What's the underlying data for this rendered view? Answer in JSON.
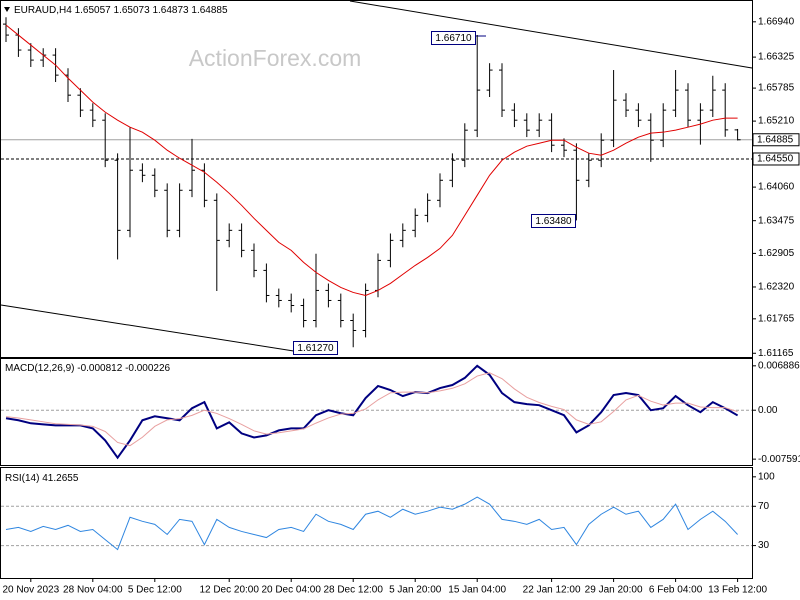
{
  "chart_data": [
    {
      "type": "candlestick",
      "title": "EURAUD,H4",
      "watermark": "ActionForex.com",
      "color": "#000000",
      "ylim": [
        1.611,
        1.6732
      ],
      "yticks": [
        {
          "value": 1.6694,
          "label": "1.66940"
        },
        1.66325,
        1.65785,
        {
          "value": 1.6521,
          "label": "1.65210"
        },
        {
          "value": 1.6406,
          "label": "1.64060"
        },
        1.63475,
        1.62905,
        {
          "value": 1.6232,
          "label": "1.62320"
        },
        1.61765,
        1.61165
      ],
      "levels": [
        {
          "value": 1.64885,
          "label": "1.64885",
          "style": "solid"
        },
        {
          "value": 1.6455,
          "label": "1.64550",
          "style": "dashed"
        }
      ],
      "annotations": [
        "1.66710",
        "1.61270",
        "1.63480"
      ],
      "categories": [
        null,
        null,
        "20 Nov 2023",
        null,
        null,
        null,
        null,
        "28 Nov 04:00",
        null,
        null,
        null,
        null,
        "5 Dec 12:00",
        null,
        null,
        null,
        null,
        null,
        "12 Dec 20:00",
        null,
        null,
        null,
        null,
        "20 Dec 04:00",
        null,
        null,
        null,
        null,
        "28 Dec 12:00",
        null,
        null,
        null,
        null,
        "5 Jan 20:00",
        null,
        null,
        null,
        null,
        "15 Jan 04:00",
        null,
        null,
        null,
        null,
        null,
        "22 Jan 12:00",
        null,
        null,
        null,
        null,
        "29 Jan 20:00",
        null,
        null,
        null,
        null,
        "6 Feb 04:00",
        null,
        null,
        null,
        null,
        "13 Feb 12:00"
      ],
      "ohlc": [
        [
          1.669,
          1.6702,
          1.66589,
          1.66709
        ],
        [
          1.66709,
          1.66829,
          1.66328,
          1.66448
        ],
        [
          1.66448,
          1.66568,
          1.66153,
          1.66273
        ],
        [
          1.66273,
          1.6648,
          1.66153,
          1.6636
        ],
        [
          1.6636,
          1.6648,
          1.65891,
          1.66011
        ],
        [
          1.66011,
          1.66131,
          1.65542,
          1.65662
        ],
        [
          1.65662,
          1.65782,
          1.65281,
          1.65401
        ],
        [
          1.65401,
          1.65521,
          1.65106,
          1.65226
        ],
        [
          1.65226,
          1.65346,
          1.64408,
          1.64528
        ],
        [
          1.64528,
          1.64648,
          1.628,
          1.63307
        ],
        [
          1.63307,
          1.651,
          1.63187,
          1.64354
        ],
        [
          1.64354,
          1.64474,
          1.64146,
          1.64266
        ],
        [
          1.64266,
          1.64386,
          1.63885,
          1.64005
        ],
        [
          1.64005,
          1.64125,
          1.63187,
          1.63307
        ],
        [
          1.63307,
          1.64125,
          1.63187,
          1.64005
        ],
        [
          1.64005,
          1.649,
          1.63885,
          1.64354
        ],
        [
          1.64354,
          1.64474,
          1.6371,
          1.6383
        ],
        [
          1.6383,
          1.6395,
          1.6225,
          1.63132
        ],
        [
          1.63132,
          1.63427,
          1.63012,
          1.63307
        ],
        [
          1.63307,
          1.63427,
          1.62838,
          1.62958
        ],
        [
          1.62958,
          1.63078,
          1.62489,
          1.62609
        ],
        [
          1.62609,
          1.62729,
          1.62052,
          1.62172
        ],
        [
          1.62172,
          1.62292,
          1.61965,
          1.62085
        ],
        [
          1.62085,
          1.62205,
          1.61877,
          1.61997
        ],
        [
          1.61997,
          1.62117,
          1.61616,
          1.61736
        ],
        [
          1.61736,
          1.629,
          1.61616,
          1.6226
        ],
        [
          1.6226,
          1.6238,
          1.61965,
          1.62085
        ],
        [
          1.62085,
          1.62205,
          1.61616,
          1.61736
        ],
        [
          1.61736,
          1.61856,
          1.6127,
          1.61562
        ],
        [
          1.61562,
          1.6238,
          1.61442,
          1.6226
        ],
        [
          1.6226,
          1.62903,
          1.6214,
          1.62783
        ],
        [
          1.62783,
          1.63252,
          1.62663,
          1.63132
        ],
        [
          1.63132,
          1.63427,
          1.63012,
          1.63307
        ],
        [
          1.63307,
          1.63688,
          1.63187,
          1.63568
        ],
        [
          1.63568,
          1.6395,
          1.63448,
          1.6383
        ],
        [
          1.6383,
          1.64299,
          1.6371,
          1.64179
        ],
        [
          1.64179,
          1.64648,
          1.64059,
          1.64528
        ],
        [
          1.64528,
          1.65172,
          1.64408,
          1.65052
        ],
        [
          1.65052,
          1.6671,
          1.64932,
          1.6575
        ],
        [
          1.6575,
          1.66219,
          1.6563,
          1.66099
        ],
        [
          1.66099,
          1.66219,
          1.65281,
          1.65401
        ],
        [
          1.65401,
          1.65521,
          1.65106,
          1.65226
        ],
        [
          1.65226,
          1.65346,
          1.64932,
          1.65052
        ],
        [
          1.65052,
          1.65346,
          1.64932,
          1.65226
        ],
        [
          1.65226,
          1.65346,
          1.6467,
          1.6479
        ],
        [
          1.6479,
          1.6491,
          1.64583,
          1.64703
        ],
        [
          1.64703,
          1.64823,
          1.6348,
          1.64179
        ],
        [
          1.64179,
          1.64648,
          1.64059,
          1.64528
        ],
        [
          1.64528,
          1.64997,
          1.64408,
          1.64877
        ],
        [
          1.64877,
          1.661,
          1.64757,
          1.65575
        ],
        [
          1.65575,
          1.65695,
          1.65281,
          1.65401
        ],
        [
          1.65401,
          1.65521,
          1.65106,
          1.65226
        ],
        [
          1.65226,
          1.65346,
          1.645,
          1.64877
        ],
        [
          1.64877,
          1.65521,
          1.64757,
          1.65401
        ],
        [
          1.65401,
          1.661,
          1.65281,
          1.6575
        ],
        [
          1.6575,
          1.6587,
          1.65106,
          1.65226
        ],
        [
          1.65226,
          1.65521,
          1.648,
          1.65401
        ],
        [
          1.65401,
          1.66,
          1.65281,
          1.6575
        ],
        [
          1.6575,
          1.6587,
          1.64937,
          1.65057
        ],
        [
          1.65057,
          1.65073,
          1.64873,
          1.64885
        ]
      ],
      "ma": {
        "color": "#e00000",
        "values": [
          1.66884,
          1.66709,
          1.66535,
          1.6636,
          1.66186,
          1.65959,
          1.6575,
          1.6554,
          1.65366,
          1.65226,
          1.65104,
          1.65017,
          1.64877,
          1.64703,
          1.64563,
          1.64441,
          1.64319,
          1.64144,
          1.63952,
          1.63743,
          1.63516,
          1.63307,
          1.63097,
          1.62958,
          1.62748,
          1.62574,
          1.62434,
          1.62312,
          1.62225,
          1.62172,
          1.6226,
          1.62382,
          1.62539,
          1.62696,
          1.62835,
          1.62992,
          1.63219,
          1.63568,
          1.63917,
          1.64266,
          1.64528,
          1.64668,
          1.64773,
          1.64825,
          1.64877,
          1.64877,
          1.64755,
          1.64651,
          1.64616,
          1.64703,
          1.64825,
          1.6493,
          1.65,
          1.65017,
          1.65052,
          1.65104,
          1.65157,
          1.65226,
          1.65261,
          1.65261
        ]
      }
    },
    {
      "type": "line",
      "title": "MACD(12,26,9)",
      "ylim": [
        -0.0085,
        0.0081
      ],
      "yticks": [
        0.006886,
        {
          "value": 0,
          "label": "0.00"
        },
        -0.007591
      ],
      "levels": [
        0
      ],
      "lines": [
        {
          "color": "#000080",
          "values": [
            -0.00125,
            -0.00156,
            -0.00203,
            -0.00219,
            -0.00235,
            -0.00235,
            -0.00235,
            -0.00282,
            -0.00469,
            -0.00736,
            -0.00469,
            -0.00156,
            -0.00094,
            -0.00125,
            -0.00156,
            0.00031,
            0.00125,
            -0.00282,
            -0.00188,
            -0.0036,
            -0.00423,
            -0.00391,
            -0.00313,
            -0.00282,
            -0.00282,
            -0.00078,
            0,
            -0.00047,
            -0.00078,
            0.00188,
            0.00376,
            0.00313,
            0.00219,
            0.00282,
            0.00266,
            0.00344,
            0.00391,
            0.00501,
            0.00689,
            0.00548,
            0.00266,
            0.00125,
            0.00094,
            0.00078,
            0,
            -0.00078,
            -0.00344,
            -0.00235,
            -0.00031,
            0.00235,
            0.00266,
            0.00235,
            0,
            0.00031,
            0.00219,
            0.00078,
            -0.00031,
            0.00125,
            0.00031,
            -0.000812
          ]
        },
        {
          "color": "#e8a0a0",
          "values": [
            -0.001,
            -0.0012,
            -0.0015,
            -0.0018,
            -0.0021,
            -0.0022,
            -0.0023,
            -0.0025,
            -0.0033,
            -0.005,
            -0.0055,
            -0.0042,
            -0.0025,
            -0.0015,
            -0.0013,
            -0.0008,
            0,
            -0.0005,
            -0.0013,
            -0.0022,
            -0.0032,
            -0.0037,
            -0.0035,
            -0.0032,
            -0.0029,
            -0.002,
            -0.0012,
            -0.0006,
            -0.0005,
            0.0002,
            0.0016,
            0.0027,
            0.0028,
            0.0028,
            0.0027,
            0.003,
            0.0034,
            0.0041,
            0.0053,
            0.0058,
            0.0049,
            0.0033,
            0.002,
            0.0012,
            0.0006,
            0.0001,
            -0.0015,
            -0.0022,
            -0.0018,
            -0.0002,
            0.0016,
            0.0023,
            0.0014,
            0.0008,
            0.0011,
            0.0011,
            0.0005,
            0.0004,
            0.0004,
            -0.000226
          ]
        }
      ]
    },
    {
      "type": "line",
      "title": "RSI(14)",
      "ylim": [
        -3,
        110
      ],
      "yticks": [
        100,
        70,
        30
      ],
      "levels": [
        70,
        30
      ],
      "lines": [
        {
          "color": "#2f86e0",
          "values": [
            46.4,
            48.5,
            44.4,
            49.5,
            46.4,
            50.6,
            44.4,
            46.4,
            36.1,
            25.9,
            58.8,
            54.7,
            51.6,
            41.3,
            56.7,
            54.7,
            31.0,
            56.7,
            48.5,
            44.4,
            41.3,
            38.2,
            46.4,
            48.5,
            44.4,
            61.9,
            54.7,
            51.6,
            46.4,
            61.9,
            65.0,
            58.8,
            67.0,
            61.9,
            65.0,
            69.1,
            67.0,
            72.2,
            79.4,
            72.2,
            56.7,
            54.7,
            51.6,
            56.7,
            46.4,
            48.5,
            31.0,
            51.6,
            61.9,
            69.1,
            61.9,
            65.0,
            48.5,
            56.7,
            72.2,
            46.4,
            56.7,
            65.0,
            54.7,
            41.2655
          ]
        }
      ]
    }
  ]
}
